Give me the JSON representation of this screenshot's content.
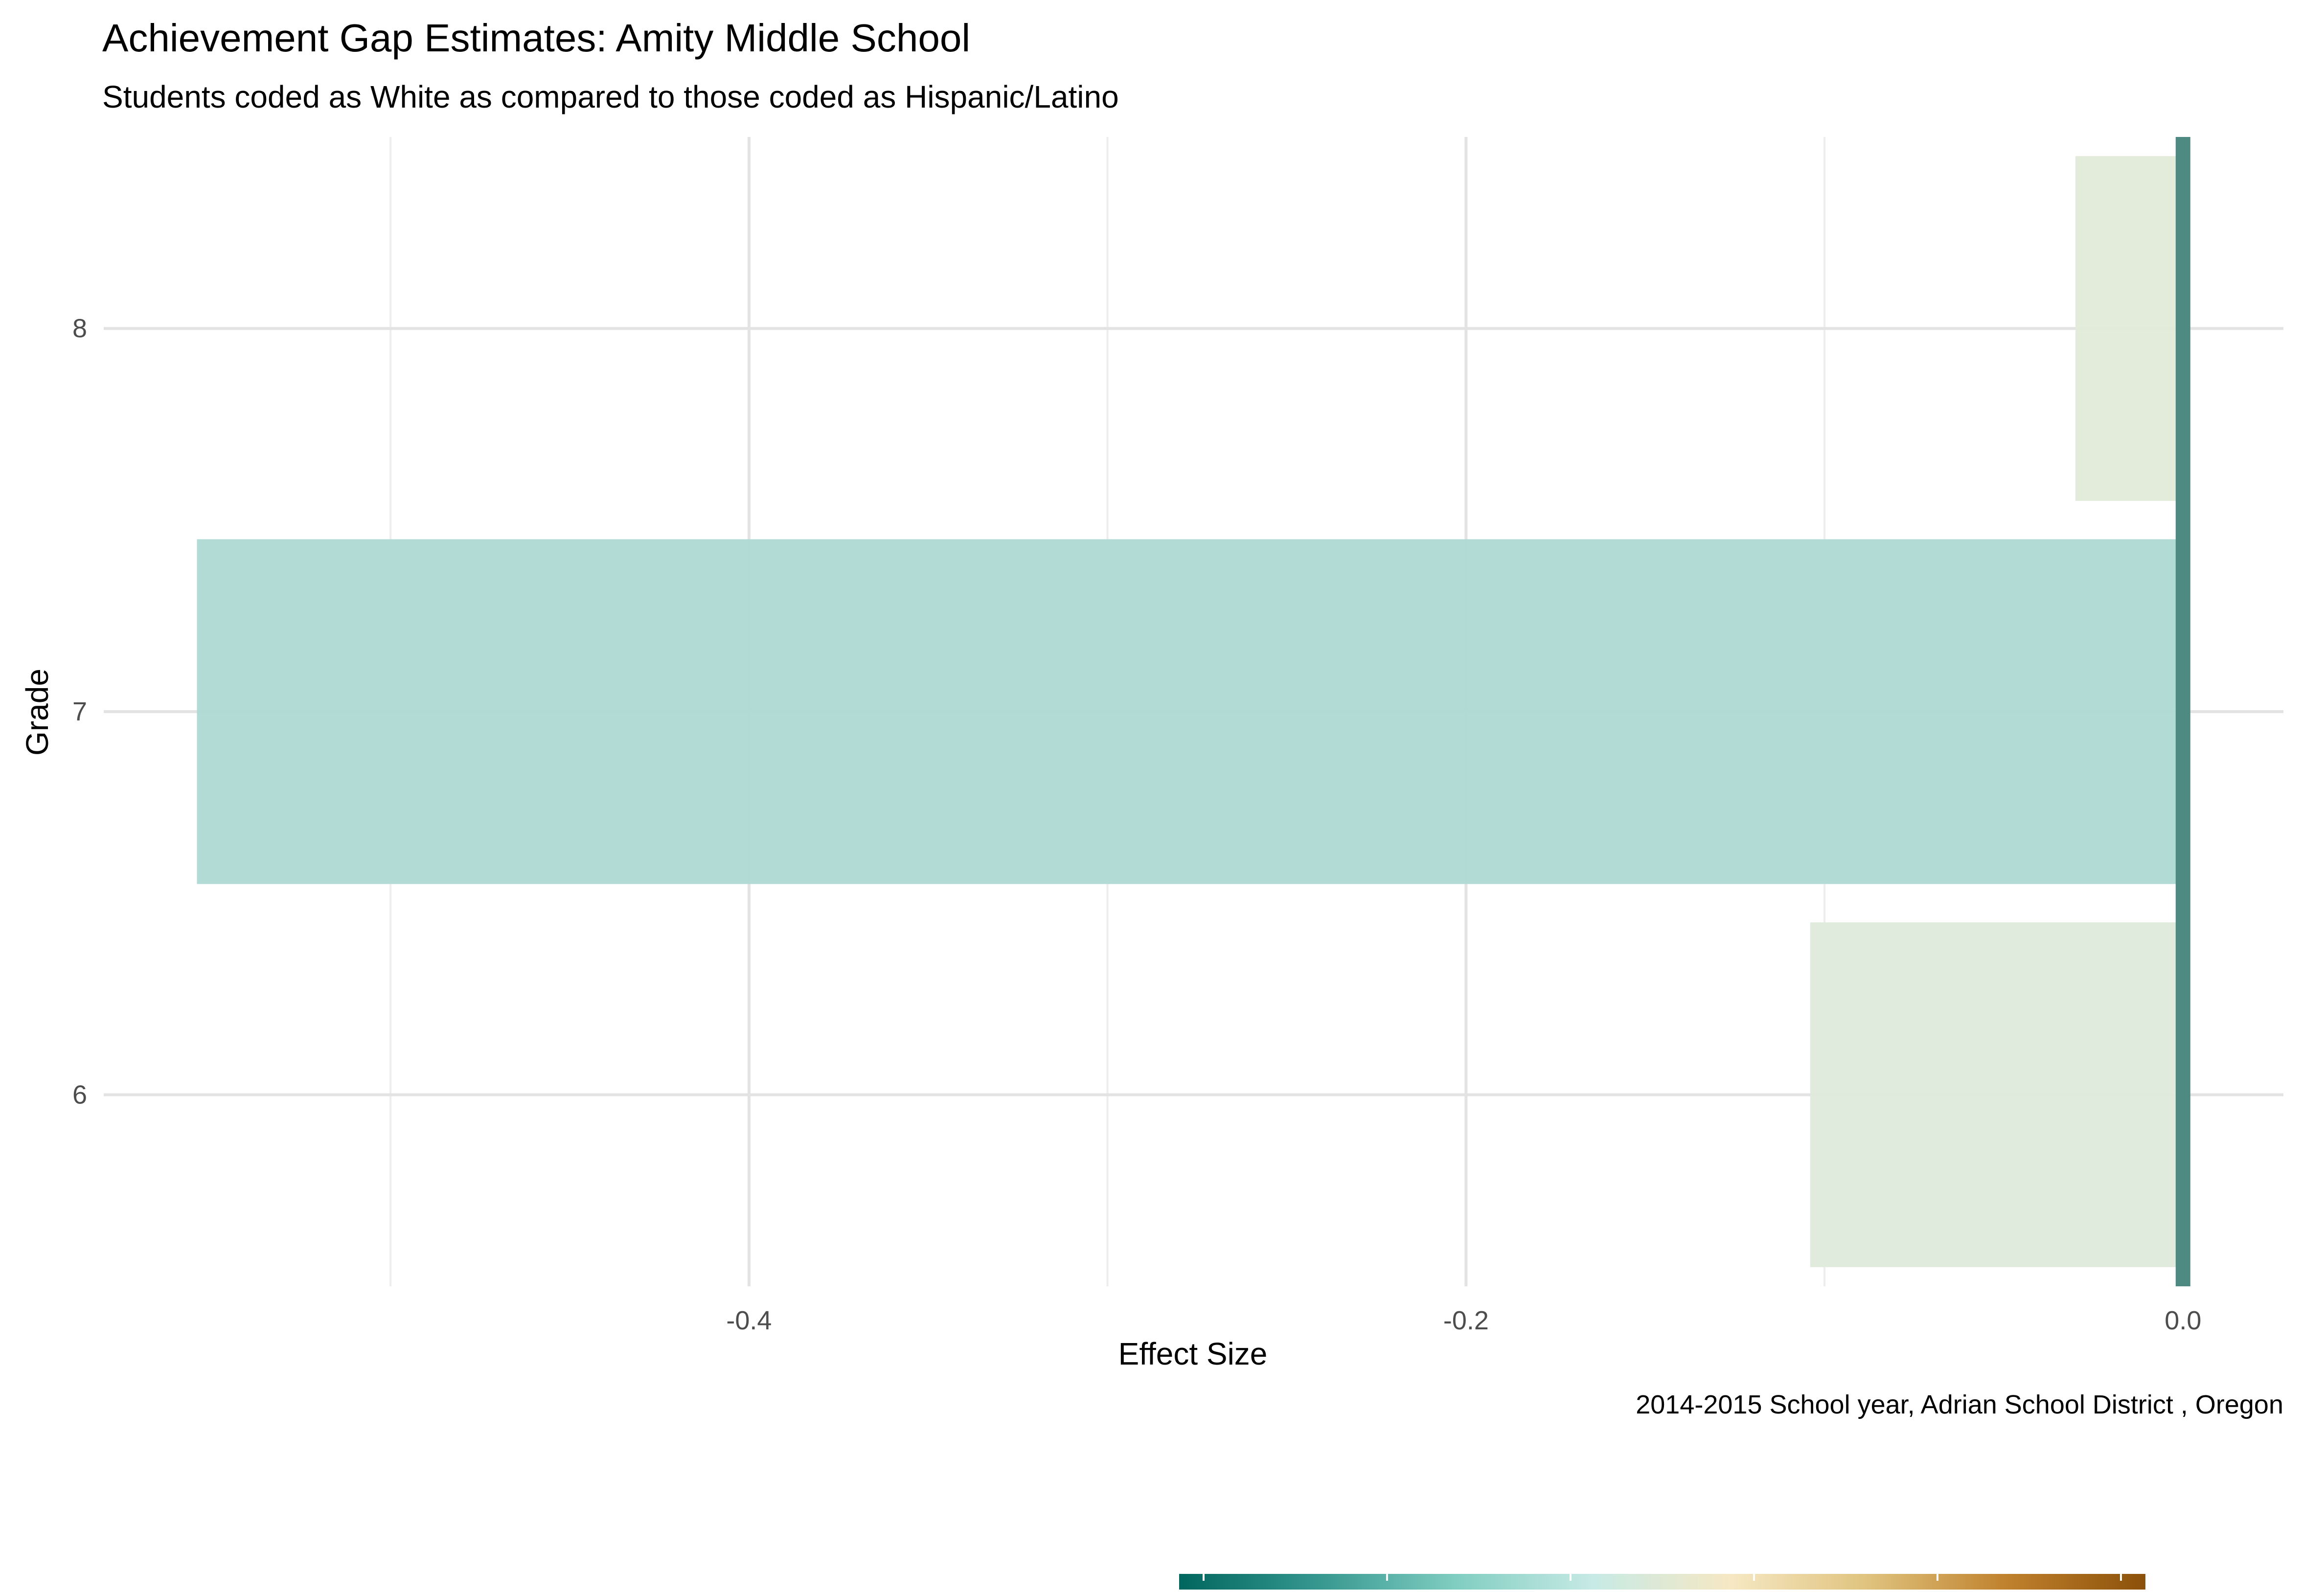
{
  "chart_data": {
    "type": "bar",
    "orientation": "horizontal",
    "title": "Achievement Gap Estimates: Amity Middle School",
    "subtitle": "Students coded as White as compared to those coded as Hispanic/Latino",
    "caption": "2014-2015 School year,  Adrian School District , Oregon",
    "xlabel": "Effect Size",
    "ylabel": "Grade",
    "categories": [
      "6",
      "7",
      "8"
    ],
    "values": [
      -0.104,
      -0.554,
      -0.03
    ],
    "bar_colors": [
      "#dfeadc",
      "#b1dad5",
      "#e2eada"
    ],
    "xlim": [
      -0.58,
      0.028
    ],
    "x_ticks": [
      -0.4,
      -0.2,
      0.0
    ],
    "x_tick_labels": [
      "-0.4",
      "-0.2",
      "0.0"
    ],
    "x_minor_ticks": [
      -0.5,
      -0.3,
      -0.1
    ],
    "reference_line": {
      "x": 0.0,
      "color": "#4f8a82"
    },
    "grid": true,
    "legend": {
      "type": "colorbar",
      "position": "bottom",
      "colors": [
        "#01665e",
        "#35978f",
        "#80cdc1",
        "#c7eae5",
        "#f6e8c3",
        "#dfc27d",
        "#bf812d",
        "#8c510a"
      ],
      "tick_count": 6
    }
  }
}
